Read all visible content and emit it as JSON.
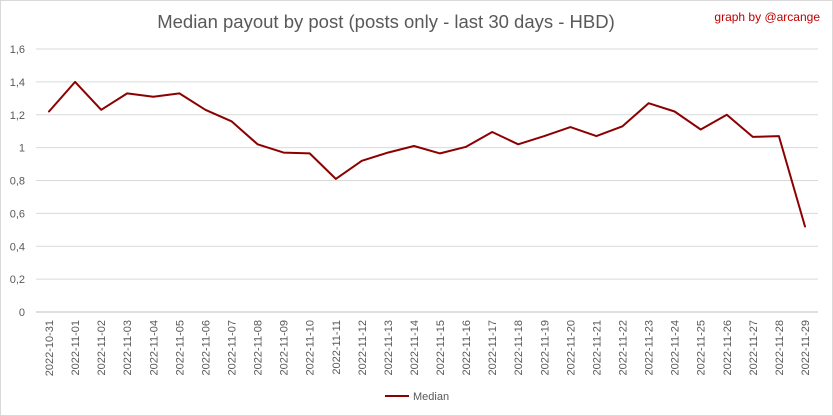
{
  "header": {
    "title": "Median payout by post (posts only - last 30 days - HBD)",
    "credit": "graph by @arcange"
  },
  "chart_data": {
    "type": "line",
    "title": "Median payout by post (posts only - last 30 days - HBD)",
    "xlabel": "",
    "ylabel": "",
    "ylim": [
      0,
      1.6
    ],
    "y_ticks": [
      "0",
      "0,2",
      "0,4",
      "0,6",
      "0,8",
      "1",
      "1,2",
      "1,4",
      "1,6"
    ],
    "y_tick_values": [
      0,
      0.2,
      0.4,
      0.6,
      0.8,
      1.0,
      1.2,
      1.4,
      1.6
    ],
    "grid": "horizontal",
    "legend_position": "bottom",
    "categories": [
      "2022-10-31",
      "2022-11-01",
      "2022-11-02",
      "2022-11-03",
      "2022-11-04",
      "2022-11-05",
      "2022-11-06",
      "2022-11-07",
      "2022-11-08",
      "2022-11-09",
      "2022-11-10",
      "2022-11-11",
      "2022-11-12",
      "2022-11-13",
      "2022-11-14",
      "2022-11-15",
      "2022-11-16",
      "2022-11-17",
      "2022-11-18",
      "2022-11-19",
      "2022-11-20",
      "2022-11-21",
      "2022-11-22",
      "2022-11-23",
      "2022-11-24",
      "2022-11-25",
      "2022-11-26",
      "2022-11-27",
      "2022-11-28",
      "2022-11-29"
    ],
    "series": [
      {
        "name": "Median",
        "color": "#8b0000",
        "values": [
          1.22,
          1.4,
          1.23,
          1.33,
          1.31,
          1.33,
          1.23,
          1.16,
          1.02,
          0.97,
          0.965,
          0.81,
          0.92,
          0.97,
          1.01,
          0.965,
          1.005,
          1.095,
          1.02,
          1.07,
          1.125,
          1.07,
          1.13,
          1.27,
          1.22,
          1.11,
          1.2,
          1.065,
          1.07,
          0.52
        ]
      }
    ]
  }
}
